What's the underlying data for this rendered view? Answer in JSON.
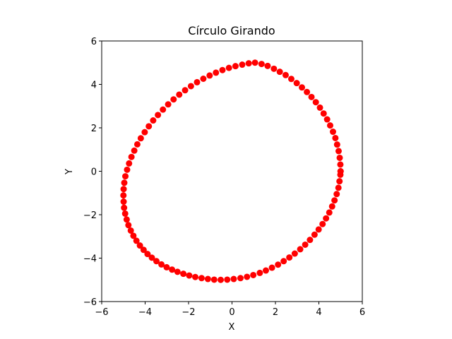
{
  "chart_data": {
    "type": "scatter",
    "title": "Círculo Girando",
    "xlabel": "X",
    "ylabel": "Y",
    "xlim": [
      -6,
      6
    ],
    "ylim": [
      -6,
      6
    ],
    "xticks": [
      -6,
      -4,
      -2,
      0,
      2,
      4,
      6
    ],
    "yticks": [
      -6,
      -4,
      -2,
      0,
      2,
      4,
      6
    ],
    "xtick_labels": [
      "−6",
      "−4",
      "−2",
      "0",
      "2",
      "4",
      "6"
    ],
    "ytick_labels": [
      "−6",
      "−4",
      "−2",
      "0",
      "2",
      "4",
      "6"
    ],
    "grid": false,
    "series": [
      {
        "color": "#ff0000",
        "marker": "circle",
        "x": [
          5.0,
          4.99,
          4.96,
          4.91,
          4.84,
          4.76,
          4.65,
          4.52,
          4.38,
          4.22,
          4.05,
          3.86,
          3.66,
          3.45,
          3.22,
          2.98,
          2.73,
          2.47,
          2.2,
          1.93,
          1.64,
          1.36,
          1.06,
          0.77,
          0.47,
          0.16,
          -0.14,
          -0.44,
          -0.74,
          -1.03,
          -1.32,
          -1.61,
          -1.89,
          -2.16,
          -2.43,
          -2.69,
          -2.94,
          -3.18,
          -3.41,
          -3.63,
          -3.83,
          -4.02,
          -4.2,
          -4.36,
          -4.5,
          -4.63,
          -4.74,
          -4.83,
          -4.91,
          -4.96,
          -4.99,
          -5.0,
          -4.99,
          -4.97,
          -4.92,
          -4.85,
          -4.77,
          -4.66,
          -4.54,
          -4.4,
          -4.24,
          -4.07,
          -3.89,
          -3.69,
          -3.48,
          -3.25,
          -3.01,
          -2.76,
          -2.51,
          -2.24,
          -1.97,
          -1.69,
          -1.4,
          -1.11,
          -0.82,
          -0.52,
          -0.22,
          0.08,
          0.39,
          0.69,
          0.98,
          1.28,
          1.56,
          1.84,
          2.12,
          2.38,
          2.64,
          2.89,
          3.14,
          3.37,
          3.59,
          3.8,
          3.99,
          4.17,
          4.33,
          4.48,
          4.61,
          4.72,
          4.82,
          4.9,
          4.95,
          4.99,
          5.0
        ],
        "y": [
          0.0,
          0.31,
          0.62,
          0.93,
          1.23,
          1.53,
          1.82,
          2.11,
          2.39,
          2.66,
          2.93,
          3.18,
          3.42,
          3.65,
          3.86,
          4.06,
          4.25,
          4.43,
          4.58,
          4.72,
          4.85,
          4.94,
          5.0,
          4.97,
          4.91,
          4.84,
          4.76,
          4.66,
          4.54,
          4.41,
          4.26,
          4.1,
          3.92,
          3.73,
          3.53,
          3.31,
          3.08,
          2.84,
          2.59,
          2.34,
          2.07,
          1.8,
          1.52,
          1.24,
          0.95,
          0.66,
          0.36,
          0.07,
          -0.23,
          -0.53,
          -0.82,
          -1.11,
          -1.4,
          -1.68,
          -1.95,
          -2.22,
          -2.48,
          -2.73,
          -2.97,
          -3.2,
          -3.42,
          -3.62,
          -3.81,
          -3.98,
          -4.14,
          -4.29,
          -4.42,
          -4.53,
          -4.63,
          -4.72,
          -4.8,
          -4.87,
          -4.92,
          -4.96,
          -4.99,
          -5.0,
          -4.99,
          -4.96,
          -4.92,
          -4.86,
          -4.78,
          -4.68,
          -4.57,
          -4.44,
          -4.3,
          -4.14,
          -3.97,
          -3.79,
          -3.59,
          -3.38,
          -3.16,
          -2.92,
          -2.68,
          -2.43,
          -2.17,
          -1.9,
          -1.62,
          -1.34,
          -1.05,
          -0.76,
          -0.46,
          -0.16,
          0.0
        ]
      }
    ]
  }
}
